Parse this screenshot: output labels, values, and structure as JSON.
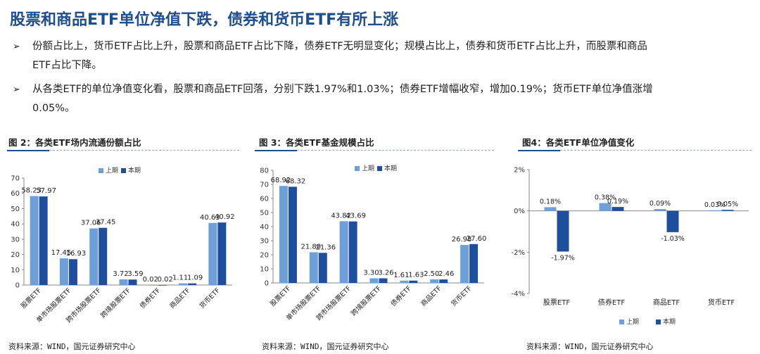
{
  "page": {
    "title": "股票和商品ETF单位净值下跌，债券和货币ETF有所上涨",
    "bullets": [
      {
        "mark": "➢",
        "lines": [
          "份额占比上，货币ETF占比上升，股票和商品ETF占比下降，债券ETF无明显变化；规模占比上，债券和货币ETF占比上升，而股票和商品",
          "ETF占比下降。"
        ]
      },
      {
        "mark": "➢",
        "lines": [
          "从各类ETF的单位净值变化看，股票和商品ETF回落，分别下跌1.97%和1.03%；债券ETF增幅收窄，增加0.19%；货币ETF单位净值涨增",
          "0.05%。"
        ]
      }
    ]
  },
  "figures": [
    {
      "title": "图 2：各类ETF场内流通份额占比",
      "source": "资料来源：WIND，国元证券研究中心"
    },
    {
      "title": "图 3：各类ETF基金规模占比",
      "source": "资料来源：WIND，国元证券研究中心"
    },
    {
      "title": "图4：各类ETF单位净值变化",
      "source": "资料来源：WIND，国元证券研究中心"
    }
  ],
  "colors": {
    "prev": "#6f9fd8",
    "curr": "#1f4e9c",
    "title": "#1f4e8c"
  },
  "chart_data": [
    {
      "type": "bar",
      "categories": [
        "股票ETF",
        "单市场股票ETF",
        "跨市场股票ETF",
        "跨境股票ETF",
        "债券ETF",
        "商品ETF",
        "货币ETF"
      ],
      "series": [
        {
          "name": "上期",
          "values": [
            58.23,
            17.45,
            37.06,
            3.72,
            0.02,
            1.11,
            40.63
          ]
        },
        {
          "name": "本期",
          "values": [
            57.97,
            16.93,
            37.45,
            3.59,
            0.02,
            1.09,
            40.92
          ]
        }
      ],
      "value_labels": [
        [
          "58.23",
          "17.45",
          "37.06",
          "3.72",
          "0.02",
          "1.11",
          "40.63"
        ],
        [
          "57.97",
          "16.93",
          "37.45",
          "3.59",
          "0.02",
          "1.09",
          "40.92"
        ]
      ],
      "ylim": [
        0,
        70
      ],
      "yticks": [
        "0",
        "10",
        "20",
        "30",
        "40",
        "50",
        "60",
        "70"
      ],
      "legend": "top-center"
    },
    {
      "type": "bar",
      "categories": [
        "股票ETF",
        "单市场股票ETF",
        "跨市场股票ETF",
        "跨境股票ETF",
        "债券ETF",
        "商品ETF",
        "货币ETF"
      ],
      "series": [
        {
          "name": "上期",
          "values": [
            68.92,
            21.8,
            43.82,
            3.3,
            1.61,
            2.5,
            26.98
          ]
        },
        {
          "name": "本期",
          "values": [
            68.32,
            21.36,
            43.69,
            3.26,
            1.63,
            2.46,
            27.6
          ]
        }
      ],
      "value_labels": [
        [
          "68.92",
          "21.80",
          "43.82",
          "3.30",
          "1.61",
          "2.50",
          "26.98"
        ],
        [
          "68.32",
          "21.36",
          "43.69",
          "3.26",
          "1.63",
          "2.46",
          "27.60"
        ]
      ],
      "ylim": [
        0,
        80
      ],
      "yticks": [
        "0",
        "10",
        "20",
        "30",
        "40",
        "50",
        "60",
        "70",
        "80"
      ],
      "legend": "top-center"
    },
    {
      "type": "bar",
      "categories": [
        "股票ETF",
        "债券ETF",
        "商品ETF",
        "货币ETF"
      ],
      "series": [
        {
          "name": "上期",
          "values": [
            0.18,
            0.38,
            0.09,
            0.03
          ]
        },
        {
          "name": "本期",
          "values": [
            -1.97,
            0.19,
            -1.03,
            0.05
          ]
        }
      ],
      "value_labels": [
        [
          "0.18%",
          "0.38%",
          "0.09%",
          "0.03%"
        ],
        [
          "-1.97%",
          "0.19%",
          "-1.03%",
          "0.05%"
        ]
      ],
      "ylim": [
        -4,
        2
      ],
      "yticks": [
        "-4%",
        "-2%",
        "0%",
        "2%"
      ],
      "legend": "bottom-center"
    }
  ]
}
